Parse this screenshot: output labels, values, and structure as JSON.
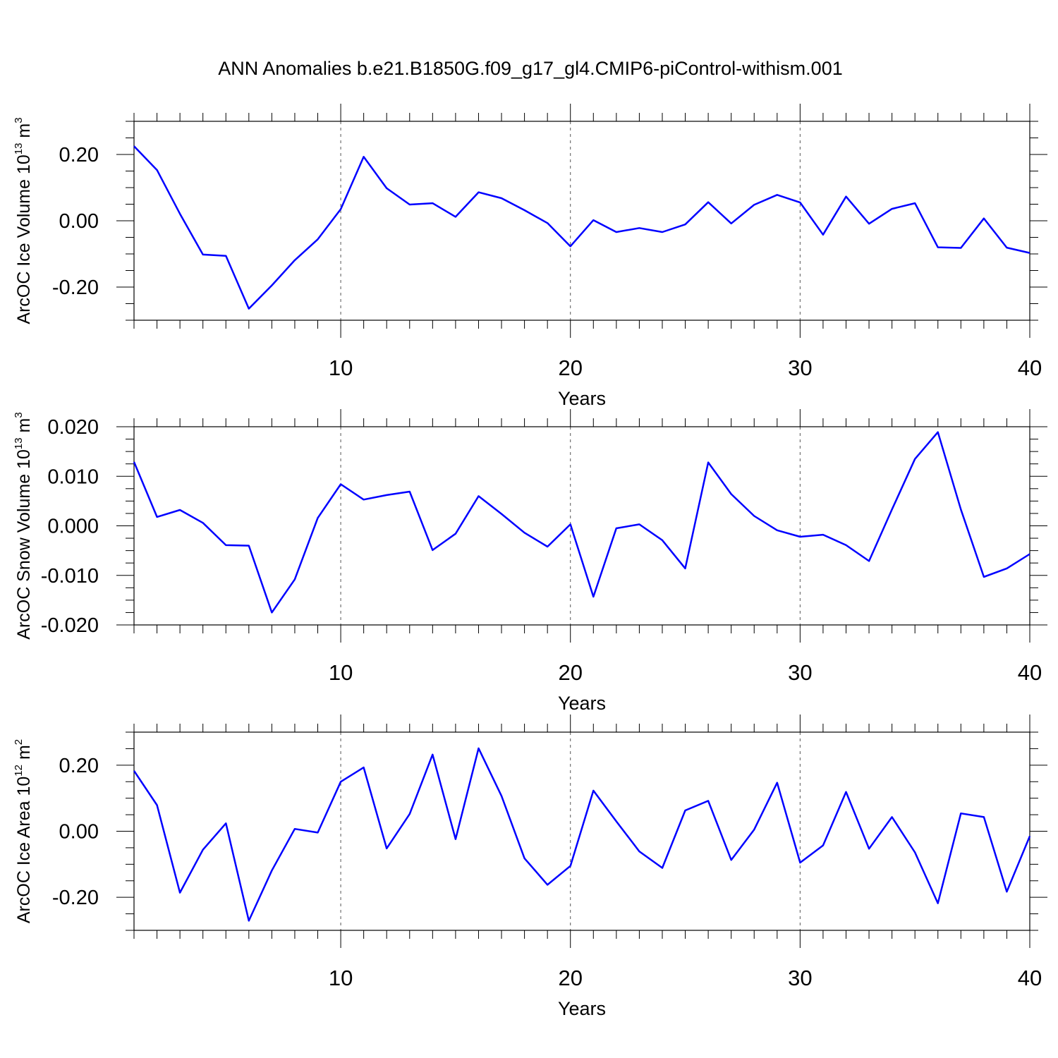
{
  "title": "ANN Anomalies b.e21.B1850G.f09_g17_gl4.CMIP6-piControl-withism.001",
  "series_color": "#0000ff",
  "chart_data": [
    {
      "type": "line",
      "ylabel": "ArcOC Ice Volume 10",
      "ylabel_exp": "13",
      "ylabel_unit": " m",
      "ylabel_unit_exp": "3",
      "xlabel": "Years",
      "xlim": [
        1,
        40
      ],
      "ylim": [
        -0.3,
        0.3
      ],
      "xticks": [
        10,
        20,
        30,
        40
      ],
      "xtick_labels": [
        "10",
        "20",
        "30",
        "40"
      ],
      "yticks": [
        -0.2,
        0.0,
        0.2
      ],
      "ytick_labels": [
        "-0.20",
        "0.00",
        "0.20"
      ],
      "grid": "dashed vertical at major x ticks",
      "x": [
        1,
        2,
        3,
        4,
        5,
        6,
        7,
        8,
        9,
        10,
        11,
        12,
        13,
        14,
        15,
        16,
        17,
        18,
        19,
        20,
        21,
        22,
        23,
        24,
        25,
        26,
        27,
        28,
        29,
        30,
        31,
        32,
        33,
        34,
        35,
        36,
        37,
        38,
        39,
        40
      ],
      "y": [
        0.225,
        0.153,
        0.021,
        -0.102,
        -0.106,
        -0.265,
        -0.195,
        -0.119,
        -0.056,
        0.035,
        0.193,
        0.098,
        0.049,
        0.053,
        0.012,
        0.086,
        0.068,
        0.032,
        -0.007,
        -0.077,
        0.002,
        -0.034,
        -0.022,
        -0.034,
        -0.011,
        0.056,
        -0.008,
        0.048,
        0.078,
        0.055,
        -0.042,
        0.073,
        -0.009,
        0.036,
        0.053,
        -0.08,
        -0.082,
        0.007,
        -0.081,
        -0.097
      ]
    },
    {
      "type": "line",
      "ylabel": "ArcOC Snow Volume 10",
      "ylabel_exp": "13",
      "ylabel_unit": " m",
      "ylabel_unit_exp": "3",
      "xlabel": "Years",
      "xlim": [
        1,
        40
      ],
      "ylim": [
        -0.02,
        0.02
      ],
      "xticks": [
        10,
        20,
        30,
        40
      ],
      "xtick_labels": [
        "10",
        "20",
        "30",
        "40"
      ],
      "yticks": [
        -0.02,
        -0.01,
        0.0,
        0.01,
        0.02
      ],
      "ytick_labels": [
        "-0.020",
        "-0.010",
        "0.000",
        "0.010",
        "0.020"
      ],
      "grid": "dashed vertical at major x ticks",
      "x": [
        1,
        2,
        3,
        4,
        5,
        6,
        7,
        8,
        9,
        10,
        11,
        12,
        13,
        14,
        15,
        16,
        17,
        18,
        19,
        20,
        21,
        22,
        23,
        24,
        25,
        26,
        27,
        28,
        29,
        30,
        31,
        32,
        33,
        34,
        35,
        36,
        37,
        38,
        39,
        40
      ],
      "y": [
        0.0129,
        0.0018,
        0.0032,
        0.0006,
        -0.0039,
        -0.004,
        -0.0175,
        -0.0108,
        0.0016,
        0.0084,
        0.0053,
        0.0062,
        0.0069,
        -0.0049,
        -0.0016,
        0.006,
        0.0024,
        -0.0014,
        -0.0042,
        0.0003,
        -0.0143,
        -0.0005,
        0.0003,
        -0.0029,
        -0.0086,
        0.0128,
        0.0064,
        0.002,
        -0.0009,
        -0.0022,
        -0.0018,
        -0.0039,
        -0.0071,
        0.0033,
        0.0135,
        0.0189,
        0.0033,
        -0.0103,
        -0.0086,
        -0.0057
      ]
    },
    {
      "type": "line",
      "ylabel": "ArcOC Ice Area 10",
      "ylabel_exp": "12",
      "ylabel_unit": " m",
      "ylabel_unit_exp": "2",
      "xlabel": "Years",
      "xlim": [
        1,
        40
      ],
      "ylim": [
        -0.3,
        0.3
      ],
      "xticks": [
        10,
        20,
        30,
        40
      ],
      "xtick_labels": [
        "10",
        "20",
        "30",
        "40"
      ],
      "yticks": [
        -0.2,
        0.0,
        0.2
      ],
      "ytick_labels": [
        "-0.20",
        "0.00",
        "0.20"
      ],
      "grid": "dashed vertical at major x ticks",
      "x": [
        1,
        2,
        3,
        4,
        5,
        6,
        7,
        8,
        9,
        10,
        11,
        12,
        13,
        14,
        15,
        16,
        17,
        18,
        19,
        20,
        21,
        22,
        23,
        24,
        25,
        26,
        27,
        28,
        29,
        30,
        31,
        32,
        33,
        34,
        35,
        36,
        37,
        38,
        39,
        40
      ],
      "y": [
        0.183,
        0.079,
        -0.186,
        -0.056,
        0.024,
        -0.271,
        -0.119,
        0.007,
        -0.004,
        0.15,
        0.193,
        -0.052,
        0.052,
        0.232,
        -0.024,
        0.251,
        0.107,
        -0.082,
        -0.162,
        -0.105,
        0.123,
        0.03,
        -0.061,
        -0.111,
        0.063,
        0.092,
        -0.087,
        0.005,
        0.147,
        -0.095,
        -0.043,
        0.119,
        -0.053,
        0.043,
        -0.064,
        -0.218,
        0.054,
        0.043,
        -0.183,
        -0.015
      ]
    }
  ]
}
